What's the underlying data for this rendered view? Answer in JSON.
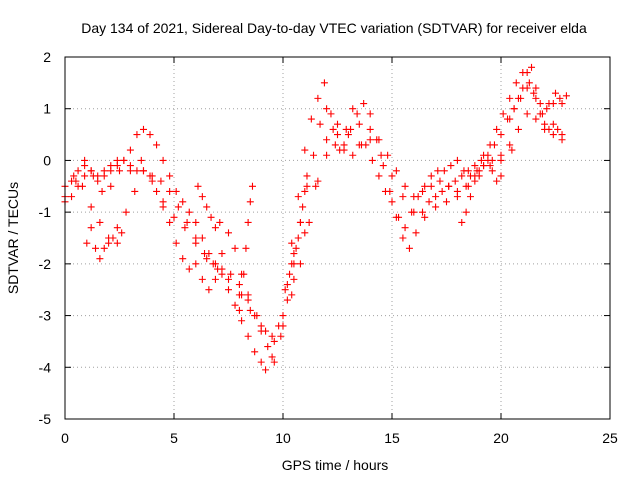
{
  "chart_data": {
    "type": "scatter",
    "title": "Day 134 of 2021, Sidereal Day-to-day VTEC variation (SDTVAR) for receiver elda",
    "xlabel": "GPS time / hours",
    "ylabel": "SDTVAR / TECUs",
    "xlim": [
      0,
      25
    ],
    "ylim": [
      -5,
      2
    ],
    "xticks": [
      "0",
      "5",
      "10",
      "15",
      "20",
      "25"
    ],
    "yticks": [
      "-5",
      "-4",
      "-3",
      "-2",
      "-1",
      "0",
      "1",
      "2"
    ],
    "grid": true,
    "marker": "plus",
    "color": "#ff0000",
    "series": [
      {
        "x": [
          0.0,
          0.3,
          0.6,
          0.9,
          1.2,
          1.5,
          1.8,
          2.1,
          2.4,
          2.7,
          3.0,
          3.3,
          3.6,
          3.9,
          4.2,
          4.5,
          4.8,
          5.1,
          5.4,
          5.7,
          6.0,
          6.3,
          6.6,
          6.9,
          7.2,
          7.5,
          7.8,
          8.1,
          8.4,
          8.7,
          9.0,
          9.2,
          9.5,
          9.8,
          10.1,
          10.4,
          10.7,
          11.0,
          11.3,
          11.6,
          11.9,
          12.2,
          12.5,
          12.8,
          13.1,
          13.4,
          13.7,
          14.0,
          14.3,
          14.6,
          14.9,
          15.2,
          15.5,
          15.8,
          16.1,
          16.4,
          16.7,
          17.0,
          17.3,
          17.6,
          17.9,
          18.2,
          18.5,
          18.8,
          19.1,
          19.4,
          19.7,
          20.0,
          20.3,
          20.6,
          20.9,
          21.2,
          21.5,
          21.8,
          22.1,
          22.4,
          22.7,
          23.0
        ],
        "y": [
          -0.8,
          -0.7,
          -0.5,
          -0.3,
          -0.2,
          -0.4,
          -0.3,
          -0.2,
          -0.1,
          0.0,
          0.2,
          0.5,
          0.6,
          0.5,
          0.3,
          0.0,
          -0.3,
          -0.6,
          -0.8,
          -1.0,
          -1.2,
          -1.5,
          -1.8,
          -2.0,
          -2.2,
          -2.5,
          -2.8,
          -3.1,
          -3.4,
          -3.7,
          -3.9,
          -4.05,
          -3.8,
          -3.2,
          -2.5,
          -1.6,
          -0.7,
          0.2,
          0.8,
          1.2,
          1.5,
          0.9,
          0.5,
          0.3,
          0.6,
          0.9,
          1.1,
          0.9,
          0.4,
          -0.1,
          -0.6,
          -1.1,
          -1.5,
          -1.7,
          -1.4,
          -1.0,
          -0.8,
          -0.7,
          -0.6,
          -0.5,
          -0.4,
          -0.3,
          -0.2,
          -0.1,
          0.0,
          0.1,
          0.3,
          0.5,
          0.8,
          1.0,
          1.2,
          1.4,
          1.3,
          1.1,
          1.0,
          1.1,
          1.2,
          1.25
        ]
      },
      {
        "x": [
          0.0,
          0.4,
          0.8,
          1.2,
          1.6,
          2.0,
          2.4,
          2.8,
          3.2,
          3.6,
          4.0,
          4.4,
          4.8,
          5.2,
          5.6,
          6.0,
          6.4,
          6.8,
          7.2,
          7.6,
          8.0,
          8.4,
          8.8,
          9.2,
          9.6,
          10.0,
          10.4,
          10.8,
          11.2,
          11.6,
          12.0,
          12.4,
          12.8,
          13.2,
          13.6,
          14.0,
          14.4,
          14.8,
          15.2,
          15.6,
          16.0,
          16.4,
          16.8,
          17.2,
          17.6,
          18.0,
          18.4,
          18.8,
          19.2,
          19.6,
          20.0,
          20.4,
          20.8,
          21.2,
          21.6,
          22.0,
          22.4,
          22.8
        ],
        "y": [
          -0.5,
          -0.3,
          -0.5,
          -0.9,
          -1.2,
          -1.5,
          -1.3,
          -1.0,
          -0.6,
          -0.2,
          -0.3,
          -0.4,
          -0.6,
          -0.9,
          -1.2,
          -1.5,
          -1.8,
          -2.0,
          -2.1,
          -2.2,
          -2.4,
          -2.7,
          -3.0,
          -3.3,
          -3.5,
          -3.2,
          -2.6,
          -2.0,
          -1.2,
          -0.4,
          0.1,
          0.3,
          0.2,
          0.1,
          0.3,
          0.6,
          0.4,
          0.1,
          -0.2,
          -0.5,
          -0.7,
          -0.6,
          -0.5,
          -0.4,
          -0.5,
          -0.6,
          -0.5,
          -0.3,
          -0.1,
          0.0,
          0.1,
          0.3,
          0.6,
          0.9,
          0.8,
          0.6,
          0.5,
          0.4
        ]
      },
      {
        "x": [
          0.5,
          0.9,
          1.3,
          1.7,
          2.1,
          2.5,
          3.0,
          3.5,
          4.0,
          4.5,
          5.0,
          5.5,
          6.0,
          6.5,
          7.0,
          7.5,
          8.0,
          8.5,
          9.0,
          9.5,
          10.0,
          10.5,
          11.0,
          11.5,
          12.0,
          12.5,
          13.0,
          13.5,
          14.0,
          14.5,
          15.0,
          15.5,
          16.0,
          16.5,
          17.0,
          17.5,
          18.0,
          18.5,
          19.0,
          19.5,
          20.0,
          20.5
        ],
        "y": [
          -0.4,
          0.0,
          -0.3,
          -0.6,
          -0.5,
          -0.2,
          -0.1,
          0.0,
          -0.4,
          -0.8,
          -1.1,
          -1.3,
          -1.6,
          -1.9,
          -2.1,
          -2.3,
          -2.6,
          -2.9,
          -3.2,
          -3.4,
          -3.0,
          -2.3,
          -1.4,
          -0.5,
          0.4,
          0.7,
          0.5,
          0.3,
          0.4,
          0.1,
          -0.3,
          -0.7,
          -1.0,
          -1.1,
          -0.9,
          -0.8,
          -0.7,
          -0.5,
          -0.3,
          -0.1,
          0.0,
          0.2
        ]
      },
      {
        "x": [
          0.0,
          0.3,
          0.6,
          0.9,
          1.2,
          1.5,
          1.8,
          2.1,
          2.4,
          2.7,
          3.0,
          3.3,
          3.6,
          3.9,
          4.2,
          4.5,
          4.8,
          5.1,
          5.4,
          5.7,
          6.0,
          6.3,
          6.6,
          6.9,
          7.2,
          7.5,
          7.8,
          8.1,
          8.4,
          8.7,
          9.0,
          9.3,
          9.6,
          9.9,
          10.2,
          10.5,
          10.8,
          11.1,
          11.4,
          11.7,
          12.0,
          12.3,
          12.6,
          12.9,
          13.2,
          13.5,
          13.8,
          14.1,
          14.4,
          14.7,
          15.0,
          15.3,
          15.6,
          15.9,
          16.2,
          16.5,
          16.8,
          17.1,
          17.4,
          17.7,
          18.0,
          18.3,
          18.6,
          18.9,
          19.2,
          19.5,
          19.8,
          20.1,
          20.4,
          20.7,
          21.0,
          21.3,
          21.6,
          21.9,
          22.2,
          22.5,
          22.8
        ],
        "y": [
          -0.7,
          -0.4,
          -0.2,
          -0.1,
          -0.2,
          -0.3,
          -0.2,
          -0.1,
          0.0,
          0.0,
          -0.2,
          -0.2,
          -0.2,
          -0.3,
          -0.6,
          -0.9,
          -1.2,
          -1.6,
          -1.9,
          -2.1,
          -2.0,
          -2.3,
          -2.5,
          -2.3,
          -1.8,
          -1.4,
          -1.7,
          -2.2,
          -2.6,
          -3.0,
          -3.3,
          -3.6,
          -3.9,
          -3.4,
          -2.7,
          -2.0,
          -1.2,
          -0.5,
          0.1,
          0.7,
          1.0,
          0.6,
          0.2,
          0.6,
          1.0,
          0.7,
          0.3,
          0.0,
          -0.3,
          -0.6,
          -0.8,
          -1.1,
          -1.3,
          -1.0,
          -0.7,
          -0.5,
          -0.3,
          -0.2,
          -0.2,
          -0.1,
          0.0,
          -0.2,
          -0.3,
          -0.2,
          0.1,
          0.3,
          0.6,
          0.9,
          1.2,
          1.5,
          1.7,
          1.5,
          1.2,
          0.9,
          1.1,
          1.3,
          1.1
        ]
      },
      {
        "x": [
          1.0,
          1.2,
          1.4,
          1.6,
          1.8,
          2.0,
          2.2,
          2.4,
          2.6
        ],
        "y": [
          -1.6,
          -1.3,
          -1.7,
          -1.9,
          -1.7,
          -1.6,
          -1.5,
          -1.6,
          -1.4
        ]
      },
      {
        "x": [
          6.1,
          6.3,
          6.5,
          6.7,
          6.9,
          7.1
        ],
        "y": [
          -0.5,
          -0.7,
          -0.9,
          -1.1,
          -1.3,
          -1.2
        ]
      },
      {
        "x": [
          8.0,
          8.1,
          8.2,
          8.3,
          8.4,
          8.5,
          8.6
        ],
        "y": [
          -2.9,
          -2.6,
          -2.2,
          -1.7,
          -1.2,
          -0.8,
          -0.5
        ]
      },
      {
        "x": [
          10.2,
          10.3,
          10.4,
          10.5,
          10.6,
          10.7,
          10.8,
          10.9,
          11.0,
          11.1
        ],
        "y": [
          -2.4,
          -2.2,
          -2.0,
          -1.8,
          -1.7,
          -1.5,
          -1.2,
          -0.9,
          -0.6,
          -0.3
        ]
      },
      {
        "x": [
          18.2,
          18.4,
          18.6,
          18.8,
          19.0,
          19.2,
          19.4,
          19.6,
          19.8,
          20.0
        ],
        "y": [
          -1.2,
          -1.0,
          -0.7,
          -0.4,
          -0.2,
          -0.1,
          0.0,
          -0.2,
          -0.4,
          -0.3
        ]
      },
      {
        "x": [
          20.4,
          20.6,
          20.8,
          21.0,
          21.2,
          21.4,
          21.6,
          21.8,
          22.0,
          22.2,
          22.4,
          22.6,
          22.8
        ],
        "y": [
          0.8,
          1.0,
          1.2,
          1.4,
          1.7,
          1.8,
          1.4,
          0.9,
          0.7,
          0.6,
          0.7,
          0.6,
          0.5
        ]
      }
    ]
  }
}
